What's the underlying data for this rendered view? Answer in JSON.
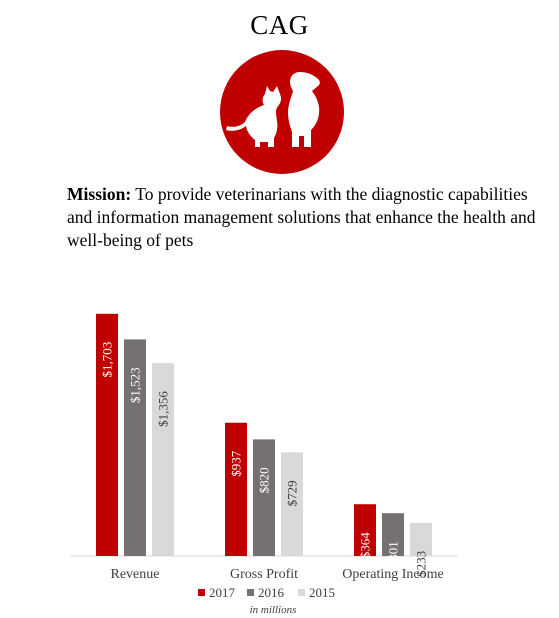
{
  "header": {
    "title": "CAG",
    "mission_label": "Mission:",
    "mission_text": "To provide veterinarians with the  diagnostic capabilities and information  management solutions that enhance the health and well-being of pets"
  },
  "logo": {
    "icon": "cat-and-dog-icon",
    "color": "#c00000"
  },
  "chart_data": {
    "type": "bar",
    "categories": [
      "Revenue",
      "Gross Profit",
      "Operating Income"
    ],
    "series": [
      {
        "name": "2017",
        "color": "#c00000",
        "values": [
          1703,
          937,
          364
        ],
        "labels": [
          "$1,703",
          "$937",
          "$364"
        ]
      },
      {
        "name": "2016",
        "color": "#767171",
        "values": [
          1523,
          820,
          301
        ],
        "labels": [
          "$1,523",
          "$820",
          "$301"
        ]
      },
      {
        "name": "2015",
        "color": "#d9d9d9",
        "values": [
          1356,
          729,
          233
        ],
        "labels": [
          "$1,356",
          "$729",
          "$233"
        ]
      }
    ],
    "ylim": [
      0,
      1800
    ],
    "units_note": "in millions",
    "grid": false,
    "legend_position": "bottom"
  }
}
